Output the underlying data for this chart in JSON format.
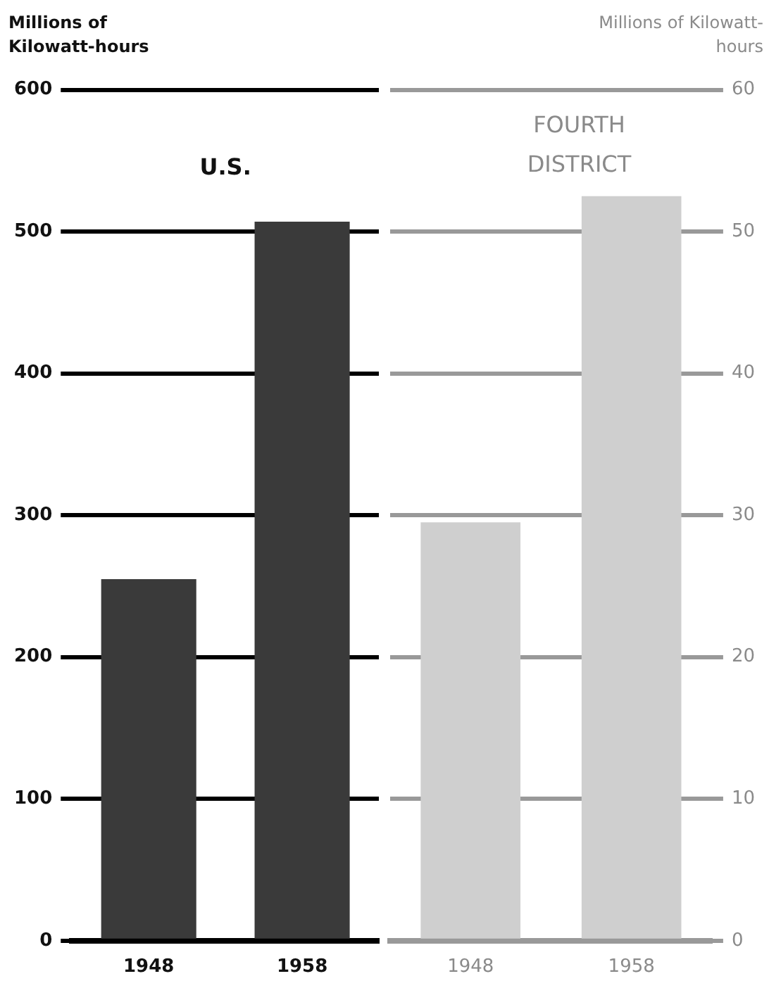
{
  "chart_data": [
    {
      "type": "bar",
      "title": "U.S.",
      "ylabel": "Millions of Kilowatt-hours",
      "categories": [
        "1948",
        "1958"
      ],
      "series": [
        {
          "color": "#3a3a3a",
          "values": [
            255,
            507
          ]
        }
      ],
      "ylim": [
        0,
        600
      ],
      "yticks": [
        0,
        100,
        200,
        300,
        400,
        500,
        600
      ],
      "grid": "y"
    },
    {
      "type": "bar",
      "title": "FOURTH DISTRICT",
      "y2label": "Millions of Kilowatt-hours",
      "categories": [
        "1948",
        "1958"
      ],
      "series": [
        {
          "color": "#cfcfcf",
          "values": [
            29.5,
            52.5
          ],
          "axis": "y2"
        }
      ],
      "y2lim": [
        0,
        60
      ],
      "y2ticks": [
        0,
        10,
        20,
        30,
        40,
        50,
        60
      ],
      "grid": "y"
    }
  ]
}
